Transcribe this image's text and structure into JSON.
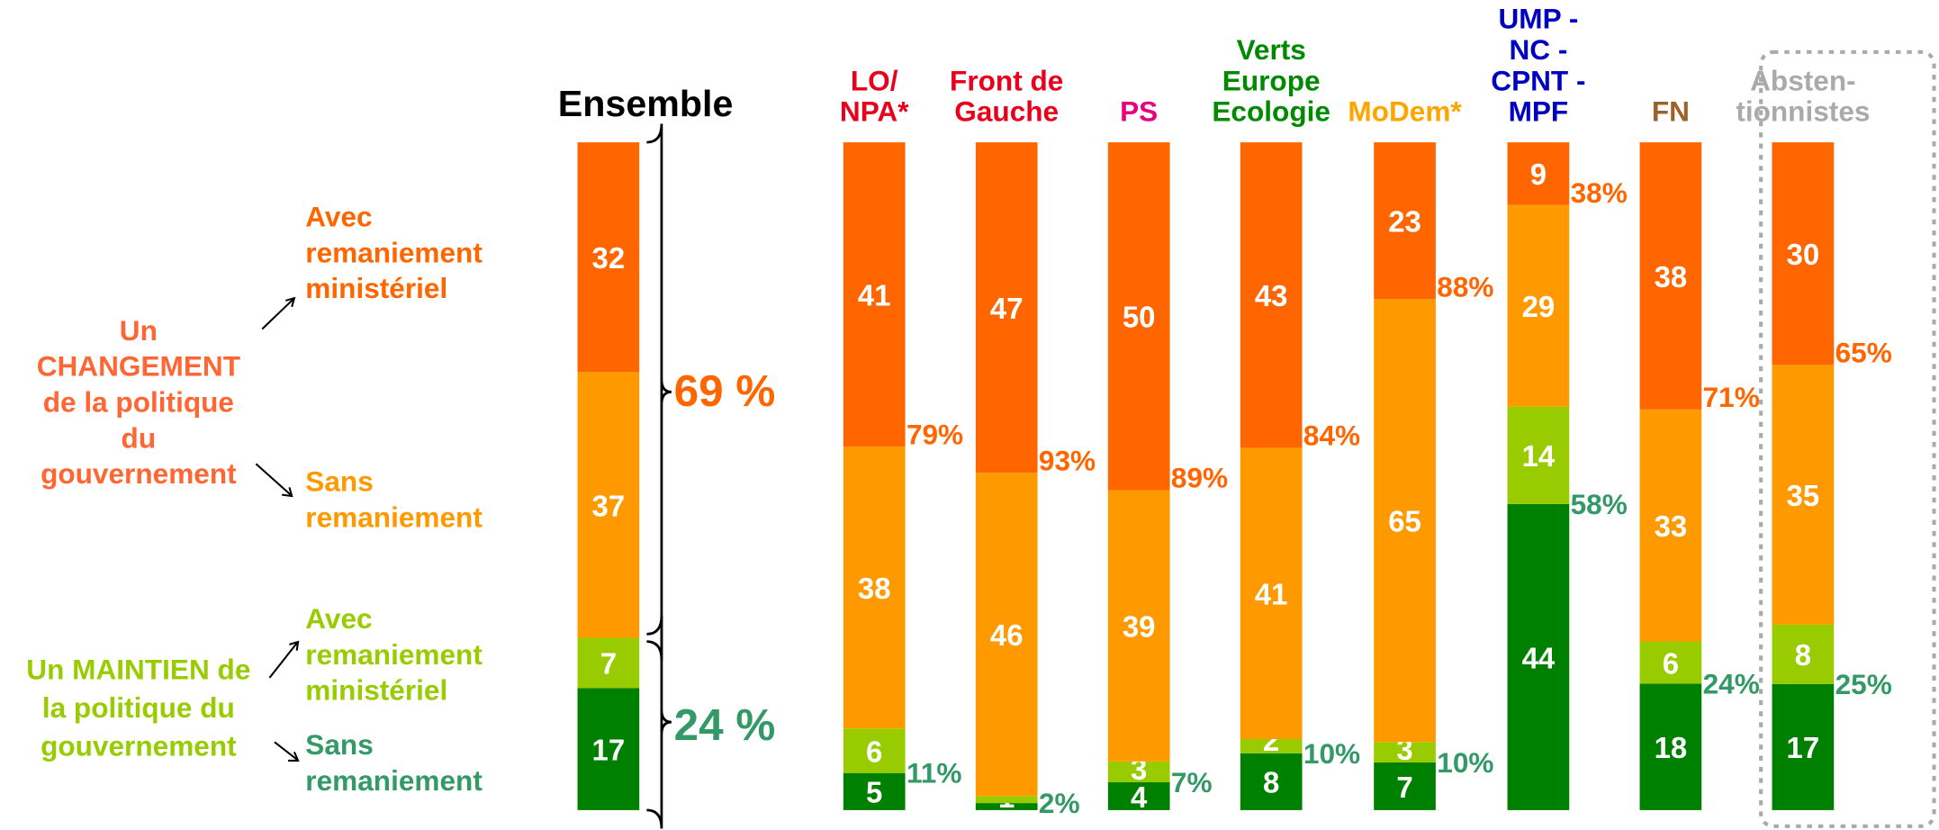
{
  "chart_data": {
    "type": "bar",
    "stacked": true,
    "categories": [
      "Ensemble",
      "LO/\nNPA*",
      "Front de\nGauche",
      "PS",
      "Verts\nEurope\nEcologie",
      "MoDem*",
      "UMP -\nNC -\nCPNT -\nMPF",
      "FN",
      "Absten-\ntionnistes"
    ],
    "category_colors": [
      "#000000",
      "#e8001c",
      "#e8001c",
      "#e6007e",
      "#008a00",
      "#ffa500",
      "#0000c0",
      "#a0602a",
      "#aaaaaa"
    ],
    "series": [
      {
        "name": "Sans\nremaniement",
        "color": "#008000",
        "label_color": "#339966",
        "values": [
          17,
          5,
          1,
          4,
          8,
          7,
          44,
          18,
          17
        ],
        "value_labels": [
          "17",
          "5",
          "1",
          "4",
          "8",
          "7",
          "44",
          "18",
          "17"
        ]
      },
      {
        "name": "Avec\nremaniement\nministériel",
        "color": "#99cc00",
        "label_color": "#99cc00",
        "values": [
          7,
          6,
          1,
          3,
          2,
          3,
          14,
          6,
          8
        ],
        "value_labels": [
          "7",
          "6",
          null,
          "3",
          "2",
          "3",
          "14",
          "6",
          "8"
        ]
      },
      {
        "name": "Sans\nremaniement",
        "color": "#ff9900",
        "label_color": "#ff9900",
        "values": [
          37,
          38,
          46,
          39,
          41,
          65,
          29,
          33,
          35
        ],
        "value_labels": [
          "37",
          "38",
          "46",
          "39",
          "41",
          "65",
          "29",
          "33",
          "35"
        ]
      },
      {
        "name": "Avec\nremaniement\nministériel",
        "color": "#ff6600",
        "label_color": "#ff6600",
        "values": [
          32,
          41,
          47,
          50,
          43,
          23,
          9,
          38,
          30
        ],
        "value_labels": [
          "32",
          "41",
          "47",
          "50",
          "43",
          "23",
          "9",
          "38",
          "30"
        ]
      }
    ],
    "change_totals": {
      "color": "#ff6600",
      "values": [
        69,
        79,
        93,
        89,
        84,
        88,
        38,
        71,
        65
      ],
      "value_labels": [
        "69 %",
        "79%",
        "93%",
        "89%",
        "84%",
        "88%",
        "38%",
        "71%",
        "65%"
      ]
    },
    "maintain_totals": {
      "color": "#339966",
      "values": [
        24,
        11,
        2,
        7,
        10,
        10,
        58,
        24,
        25
      ],
      "value_labels": [
        "24 %",
        "11%",
        "2%",
        "7%",
        "10%",
        "10%",
        "58%",
        "24%",
        "25%"
      ]
    },
    "annotations": {
      "change": {
        "text": "Un\nCHANGEMENT\nde la politique\ndu\ngouvernement",
        "color": "#ff6633"
      },
      "maintain": {
        "text": "Un MAINTIEN de\nla politique du\ngouvernement",
        "color": "#99cc00"
      }
    }
  }
}
